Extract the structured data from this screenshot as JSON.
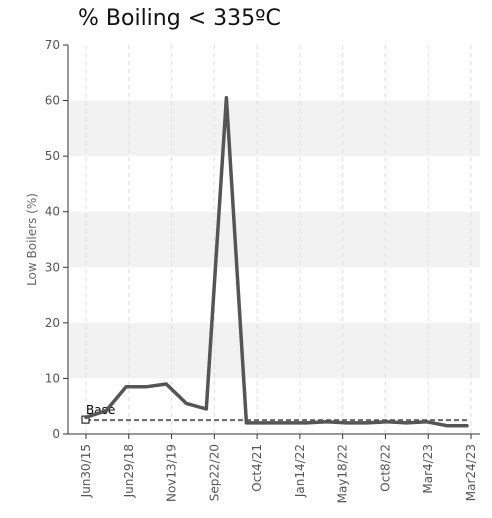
{
  "chart_data": {
    "type": "line",
    "title": "% Boiling < 335ºC",
    "xlabel": "",
    "ylabel": "Low Boilers (%)",
    "ylim": [
      0,
      70
    ],
    "y_ticks": [
      0,
      10,
      20,
      30,
      40,
      50,
      60,
      70
    ],
    "x_tick_labels": [
      "Jun30/15",
      "Jun29/18",
      "Nov13/19",
      "Sep22/20",
      "Oct4/21",
      "Jan14/22",
      "May18/22",
      "Oct8/22",
      "Mar4/23",
      "Mar24/23"
    ],
    "grid": true,
    "series": [
      {
        "name": "",
        "color": "#555555",
        "values": [
          3,
          4.2,
          8.5,
          8.5,
          9,
          5.5,
          4.5,
          60.5,
          2,
          2,
          2,
          2,
          2.2,
          2,
          2,
          2.2,
          2,
          2.2,
          1.5,
          1.5
        ]
      },
      {
        "name": "Base",
        "color": "#666666",
        "style": "dashed",
        "constant": 2.5
      }
    ],
    "colors": {
      "band": "#f2f2f2",
      "grid": "#dddddd",
      "axis": "#333333"
    }
  }
}
